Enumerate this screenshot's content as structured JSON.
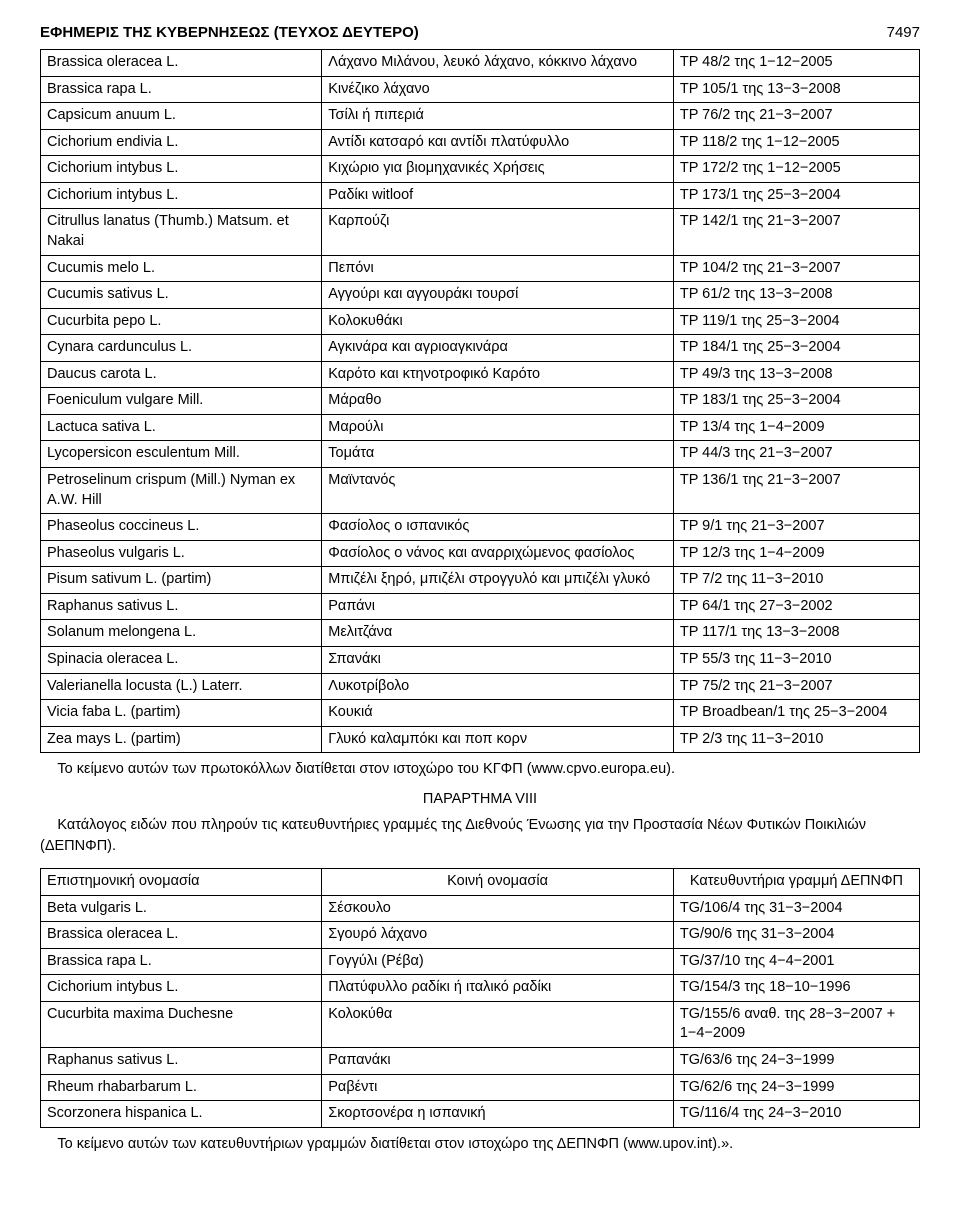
{
  "header": {
    "title": "ΕΦΗΜΕΡΙΣ ΤΗΣ ΚΥΒΕΡΝΗΣΕΩΣ (ΤΕΥΧΟΣ ΔΕΥΤΕΡΟ)",
    "page_number": "7497"
  },
  "main_table": {
    "rows": [
      [
        "Brassica oleracea L.",
        "Λάχανο Μιλάνου, λευκό λάχανο, κόκκινο λάχανο",
        "TP 48/2 της 1−12−2005"
      ],
      [
        "Brassica rapa L.",
        "Κινέζικο λάχανο",
        "TP 105/1 της 13−3−2008"
      ],
      [
        "Capsicum anuum L.",
        "Τσίλι ή πιπεριά",
        "TP 76/2 της 21−3−2007"
      ],
      [
        "Cichorium endivia L.",
        "Αντίδι κατσαρό και αντίδι πλατύφυλλο",
        "TP 118/2 της 1−12−2005"
      ],
      [
        "Cichorium intybus L.",
        "Κιχώριο για βιομηχανικές Χρήσεις",
        "TP 172/2 της 1−12−2005"
      ],
      [
        "Cichorium intybus L.",
        "Ραδίκι witloof",
        "TP 173/1 της 25−3−2004"
      ],
      [
        "Citrullus lanatus (Thumb.) Matsum. et Nakai",
        "Καρπούζι",
        "TP 142/1 της 21−3−2007"
      ],
      [
        "Cucumis melo L.",
        "Πεπόνι",
        "TP 104/2 της 21−3−2007"
      ],
      [
        "Cucumis sativus L.",
        "Αγγούρι και αγγουράκι τουρσί",
        "TP 61/2 της 13−3−2008"
      ],
      [
        "Cucurbita pepo L.",
        "Κολοκυθάκι",
        "TP 119/1 της 25−3−2004"
      ],
      [
        "Cynara cardunculus L.",
        "Αγκινάρα και αγριοαγκινάρα",
        "TP 184/1 της 25−3−2004"
      ],
      [
        "Daucus carota L.",
        "Καρότο και κτηνοτροφικό Καρότο",
        "TP 49/3 της 13−3−2008"
      ],
      [
        "Foeniculum vulgare Mill.",
        "Μάραθο",
        "TP 183/1 της 25−3−2004"
      ],
      [
        "Lactuca sativa L.",
        "Μαρούλι",
        "TP 13/4 της 1−4−2009"
      ],
      [
        "Lycopersicon esculentum Mill.",
        "Τομάτα",
        "TP 44/3 της 21−3−2007"
      ],
      [
        "Petroselinum crispum (Mill.) Nyman ex A.W. Hill",
        "Μαϊντανός",
        "TP 136/1 της 21−3−2007"
      ],
      [
        "Phaseolus coccineus L.",
        "Φασίολος ο ισπανικός",
        "TP 9/1 της 21−3−2007"
      ],
      [
        "Phaseolus vulgaris L.",
        "Φασίολος ο νάνος και αναρριχώμενος φασίολος",
        "TP 12/3 της 1−4−2009"
      ],
      [
        "Pisum sativum L. (partim)",
        "Μπιζέλι ξηρό, μπιζέλι στρογγυλό και μπιζέλι γλυκό",
        "TP 7/2 της 11−3−2010"
      ],
      [
        "Raphanus sativus L.",
        "Ραπάνι",
        "TP 64/1 της 27−3−2002"
      ],
      [
        "Solanum melongena L.",
        "Μελιτζάνα",
        "TP 117/1 της 13−3−2008"
      ],
      [
        "Spinacia oleracea L.",
        "Σπανάκι",
        "TP 55/3 της 11−3−2010"
      ],
      [
        "Valerianella locusta (L.) Laterr.",
        "Λυκοτρίβολο",
        "TP 75/2 της 21−3−2007"
      ],
      [
        "Vicia faba L. (partim)",
        "Κουκιά",
        "TP Broadbean/1 της 25−3−2004"
      ],
      [
        "Zea mays L. (partim)",
        "Γλυκό καλαμπόκι και ποπ κορν",
        "TP 2/3 της 11−3−2010"
      ]
    ]
  },
  "note1": "Το κείμενο αυτών των πρωτοκόλλων διατίθεται στον ιστοχώρο του ΚΓΦΠ (www.cpvo.europa.eu).",
  "annex_title": "ΠΑΡΑΡΤΗΜΑ VΙΙΙ",
  "annex_intro": "Κατάλογος ειδών που πληρούν τις κατευθυντήριες γραμμές της Διεθνούς Ένωσης για την Προστασία Νέων Φυτικών Ποικιλιών (ΔΕΠΝΦΠ).",
  "annex_table": {
    "header": [
      "Επιστημονική ονομασία",
      "Κοινή ονομασία",
      "Κατευθυντήρια γραμμή ΔΕΠΝΦΠ"
    ],
    "rows": [
      [
        "Beta vulgaris L.",
        "Σέσκουλο",
        "TG/106/4 της 31−3−2004"
      ],
      [
        "Brassica oleracea L.",
        "Σγουρό λάχανο",
        "TG/90/6 της 31−3−2004"
      ],
      [
        "Brassica rapa L.",
        "Γογγύλι (Ρέβα)",
        "TG/37/10 της 4−4−2001"
      ],
      [
        "Cichorium intybus L.",
        "Πλατύφυλλο ραδίκι ή ιταλικό ραδίκι",
        "TG/154/3 της 18−10−1996"
      ],
      [
        "Cucurbita maxima Duchesne",
        "Κολοκύθα",
        "TG/155/6 αναθ. της 28−3−2007 + 1−4−2009"
      ],
      [
        "Raphanus sativus L.",
        "Ραπανάκι",
        "TG/63/6 της 24−3−1999"
      ],
      [
        "Rheum rhabarbarum L.",
        "Ραβέντι",
        "TG/62/6 της 24−3−1999"
      ],
      [
        "Scorzonera hispanica L.",
        "Σκορτσονέρα η ισπανική",
        "TG/116/4 της 24−3−2010"
      ]
    ]
  },
  "note2": "Το κείμενο αυτών των κατευθυντήριων γραμμών διατίθεται στον ιστοχώρο της ΔΕΠΝΦΠ (www.upov.int).»."
}
